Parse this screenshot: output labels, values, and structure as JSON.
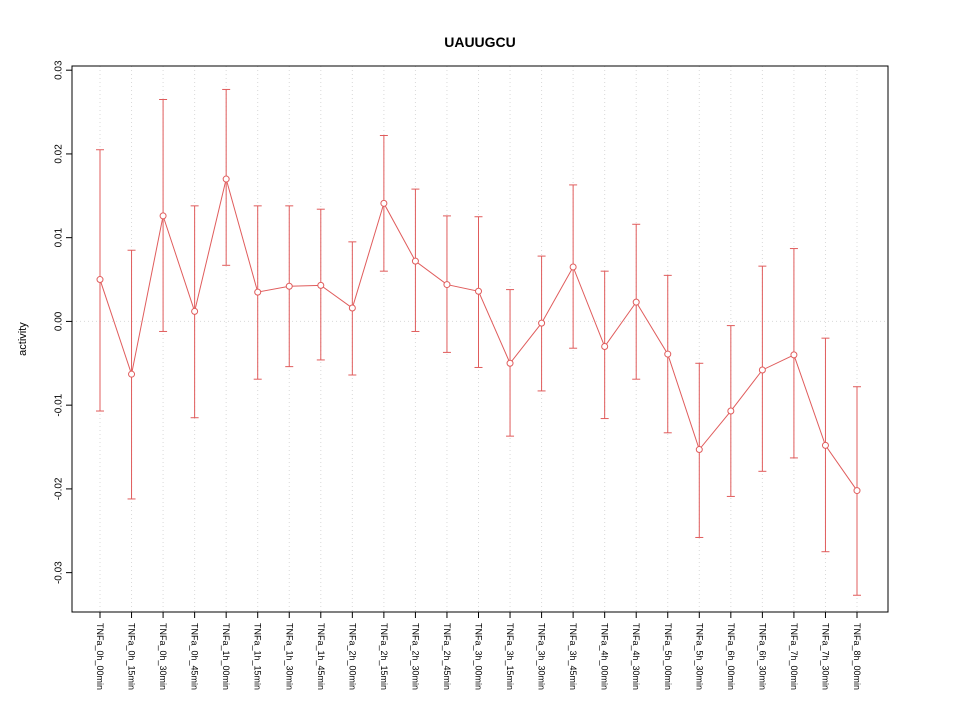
{
  "chart_data": {
    "type": "line",
    "title": "UAUUGCU",
    "ylabel": "activity",
    "xlabel": "",
    "marker": "open-circle",
    "color": "#e05c5c",
    "grid_color": "#d9d9d9",
    "grid": "dotted vertical line at each category, dotted horizontal line at 0",
    "legend": "none",
    "ylim": [
      -0.0347,
      0.0305
    ],
    "yticks": [
      0.03,
      0.02,
      0.01,
      0.0,
      -0.01,
      -0.02,
      -0.03
    ],
    "ytick_labels": [
      "0.03",
      "0.02",
      "0.01",
      "0.00",
      "-0.01",
      "-0.02",
      "-0.03"
    ],
    "categories": [
      "TNFa_0h_00min",
      "TNFa_0h_15min",
      "TNFa_0h_30min",
      "TNFa_0h_45min",
      "TNFa_1h_00min",
      "TNFa_1h_15min",
      "TNFa_1h_30min",
      "TNFa_1h_45min",
      "TNFa_2h_00min",
      "TNFa_2h_15min",
      "TNFa_2h_30min",
      "TNFa_2h_45min",
      "TNFa_3h_00min",
      "TNFa_3h_15min",
      "TNFa_3h_30min",
      "TNFa_3h_45min",
      "TNFa_4h_00min",
      "TNFa_4h_30min",
      "TNFa_5h_00min",
      "TNFa_5h_30min",
      "TNFa_6h_00min",
      "TNFa_6h_30min",
      "TNFa_7h_00min",
      "TNFa_7h_30min",
      "TNFa_8h_00min"
    ],
    "series": [
      {
        "name": "activity",
        "values": [
          0.005,
          -0.0063,
          0.0126,
          0.0012,
          0.017,
          0.0035,
          0.0042,
          0.0043,
          0.0016,
          0.0141,
          0.0072,
          0.0044,
          0.0036,
          -0.005,
          -0.0002,
          0.0065,
          -0.003,
          0.0023,
          -0.0039,
          -0.0153,
          -0.0107,
          -0.0058,
          -0.004,
          -0.0148,
          -0.0202
        ],
        "upper": [
          0.0205,
          0.0085,
          0.0265,
          0.0138,
          0.0277,
          0.0138,
          0.0138,
          0.0134,
          0.0095,
          0.0222,
          0.0158,
          0.0126,
          0.0125,
          0.0038,
          0.0078,
          0.0163,
          0.006,
          0.0116,
          0.0055,
          -0.005,
          -0.0005,
          0.0066,
          0.0087,
          -0.002,
          -0.0078
        ],
        "lower": [
          -0.0107,
          -0.0212,
          -0.0012,
          -0.0115,
          0.0067,
          -0.0069,
          -0.0054,
          -0.0046,
          -0.0064,
          0.006,
          -0.0012,
          -0.0037,
          -0.0055,
          -0.0137,
          -0.0083,
          -0.0032,
          -0.0116,
          -0.0069,
          -0.0133,
          -0.0258,
          -0.0209,
          -0.0179,
          -0.0163,
          -0.0275,
          -0.0327
        ]
      }
    ]
  }
}
